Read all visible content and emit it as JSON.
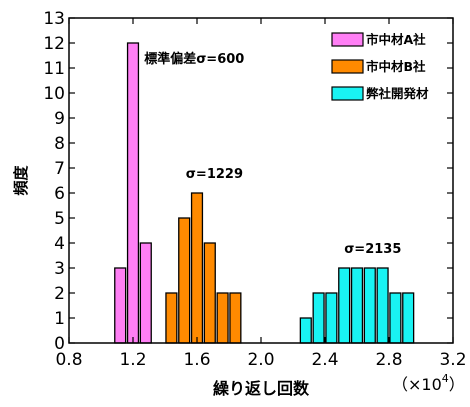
{
  "chart_data": {
    "type": "bar",
    "xlabel": "繰り返し回数",
    "ylabel": "頻度",
    "x_multiplier": {
      "base": "（×10",
      "exponent": "4",
      "close": "）"
    },
    "xlim": [
      0.8,
      3.2
    ],
    "ylim": [
      0,
      13
    ],
    "xticks": [
      "0.8",
      "1.2",
      "1.6",
      "2.0",
      "2.4",
      "2.8",
      "3.2"
    ],
    "yticks": [
      "0",
      "1",
      "2",
      "3",
      "4",
      "5",
      "6",
      "7",
      "8",
      "9",
      "10",
      "11",
      "12",
      "13"
    ],
    "bin_width": 0.08,
    "legend_position": "top-right",
    "series": [
      {
        "name": "市中材A社",
        "color": "#ff7ff5",
        "x": [
          1.12,
          1.2,
          1.28
        ],
        "values": [
          3,
          12,
          4
        ]
      },
      {
        "name": "市中材B社",
        "color": "#ff8a00",
        "x": [
          1.44,
          1.52,
          1.6,
          1.68,
          1.76,
          1.84
        ],
        "values": [
          2,
          5,
          6,
          4,
          2,
          2
        ]
      },
      {
        "name": "弊社開発材",
        "color": "#19f3f3",
        "x": [
          2.28,
          2.36,
          2.44,
          2.52,
          2.6,
          2.68,
          2.76,
          2.84,
          2.92
        ],
        "values": [
          1,
          2,
          2,
          3,
          3,
          3,
          3,
          2,
          2
        ]
      }
    ],
    "annotations": [
      {
        "text": "標準偏差σ=600",
        "x": 1.27,
        "y": 11.2
      },
      {
        "text": "σ=1229",
        "x": 1.53,
        "y": 6.6
      },
      {
        "text": "σ=2135",
        "x": 2.52,
        "y": 3.6
      }
    ]
  }
}
